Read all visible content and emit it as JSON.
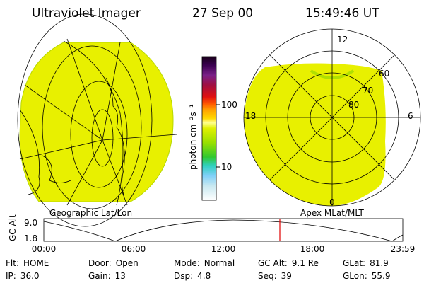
{
  "header": {
    "title": "Ultraviolet Imager",
    "date": "27 Sep 00",
    "time": "15:49:46 UT"
  },
  "colorbar": {
    "unit": "photon cm⁻²s⁻¹",
    "ticks": [
      "100",
      "10"
    ]
  },
  "polar": {
    "mlt": [
      "12",
      "6",
      "18",
      "0"
    ],
    "mlat": [
      "60",
      "70",
      "80"
    ]
  },
  "panel_labels": {
    "left": "Geographic Lat/Lon",
    "right": "Apex MLat/MLT"
  },
  "altitude_plot": {
    "ylabel": "GC Alt",
    "yticks": [
      "9.0",
      "1.8"
    ],
    "xticks": [
      "00:00",
      "06:00",
      "12:00",
      "18:00",
      "23:59"
    ]
  },
  "info": {
    "rows": [
      [
        {
          "label": "Flt:",
          "value": "HOME"
        },
        {
          "label": "Door:",
          "value": "Open"
        },
        {
          "label": "Mode:",
          "value": "Normal"
        },
        {
          "label": "GC Alt:",
          "value": "9.1 Re"
        },
        {
          "label": "GLat:",
          "value": "81.9"
        }
      ],
      [
        {
          "label": "IP:",
          "value": "36.0"
        },
        {
          "label": "Gain:",
          "value": "13"
        },
        {
          "label": "Dsp:",
          "value": "4.8"
        },
        {
          "label": "Seq:",
          "value": "39"
        },
        {
          "label": "GLon:",
          "value": "55.9"
        }
      ]
    ]
  }
}
